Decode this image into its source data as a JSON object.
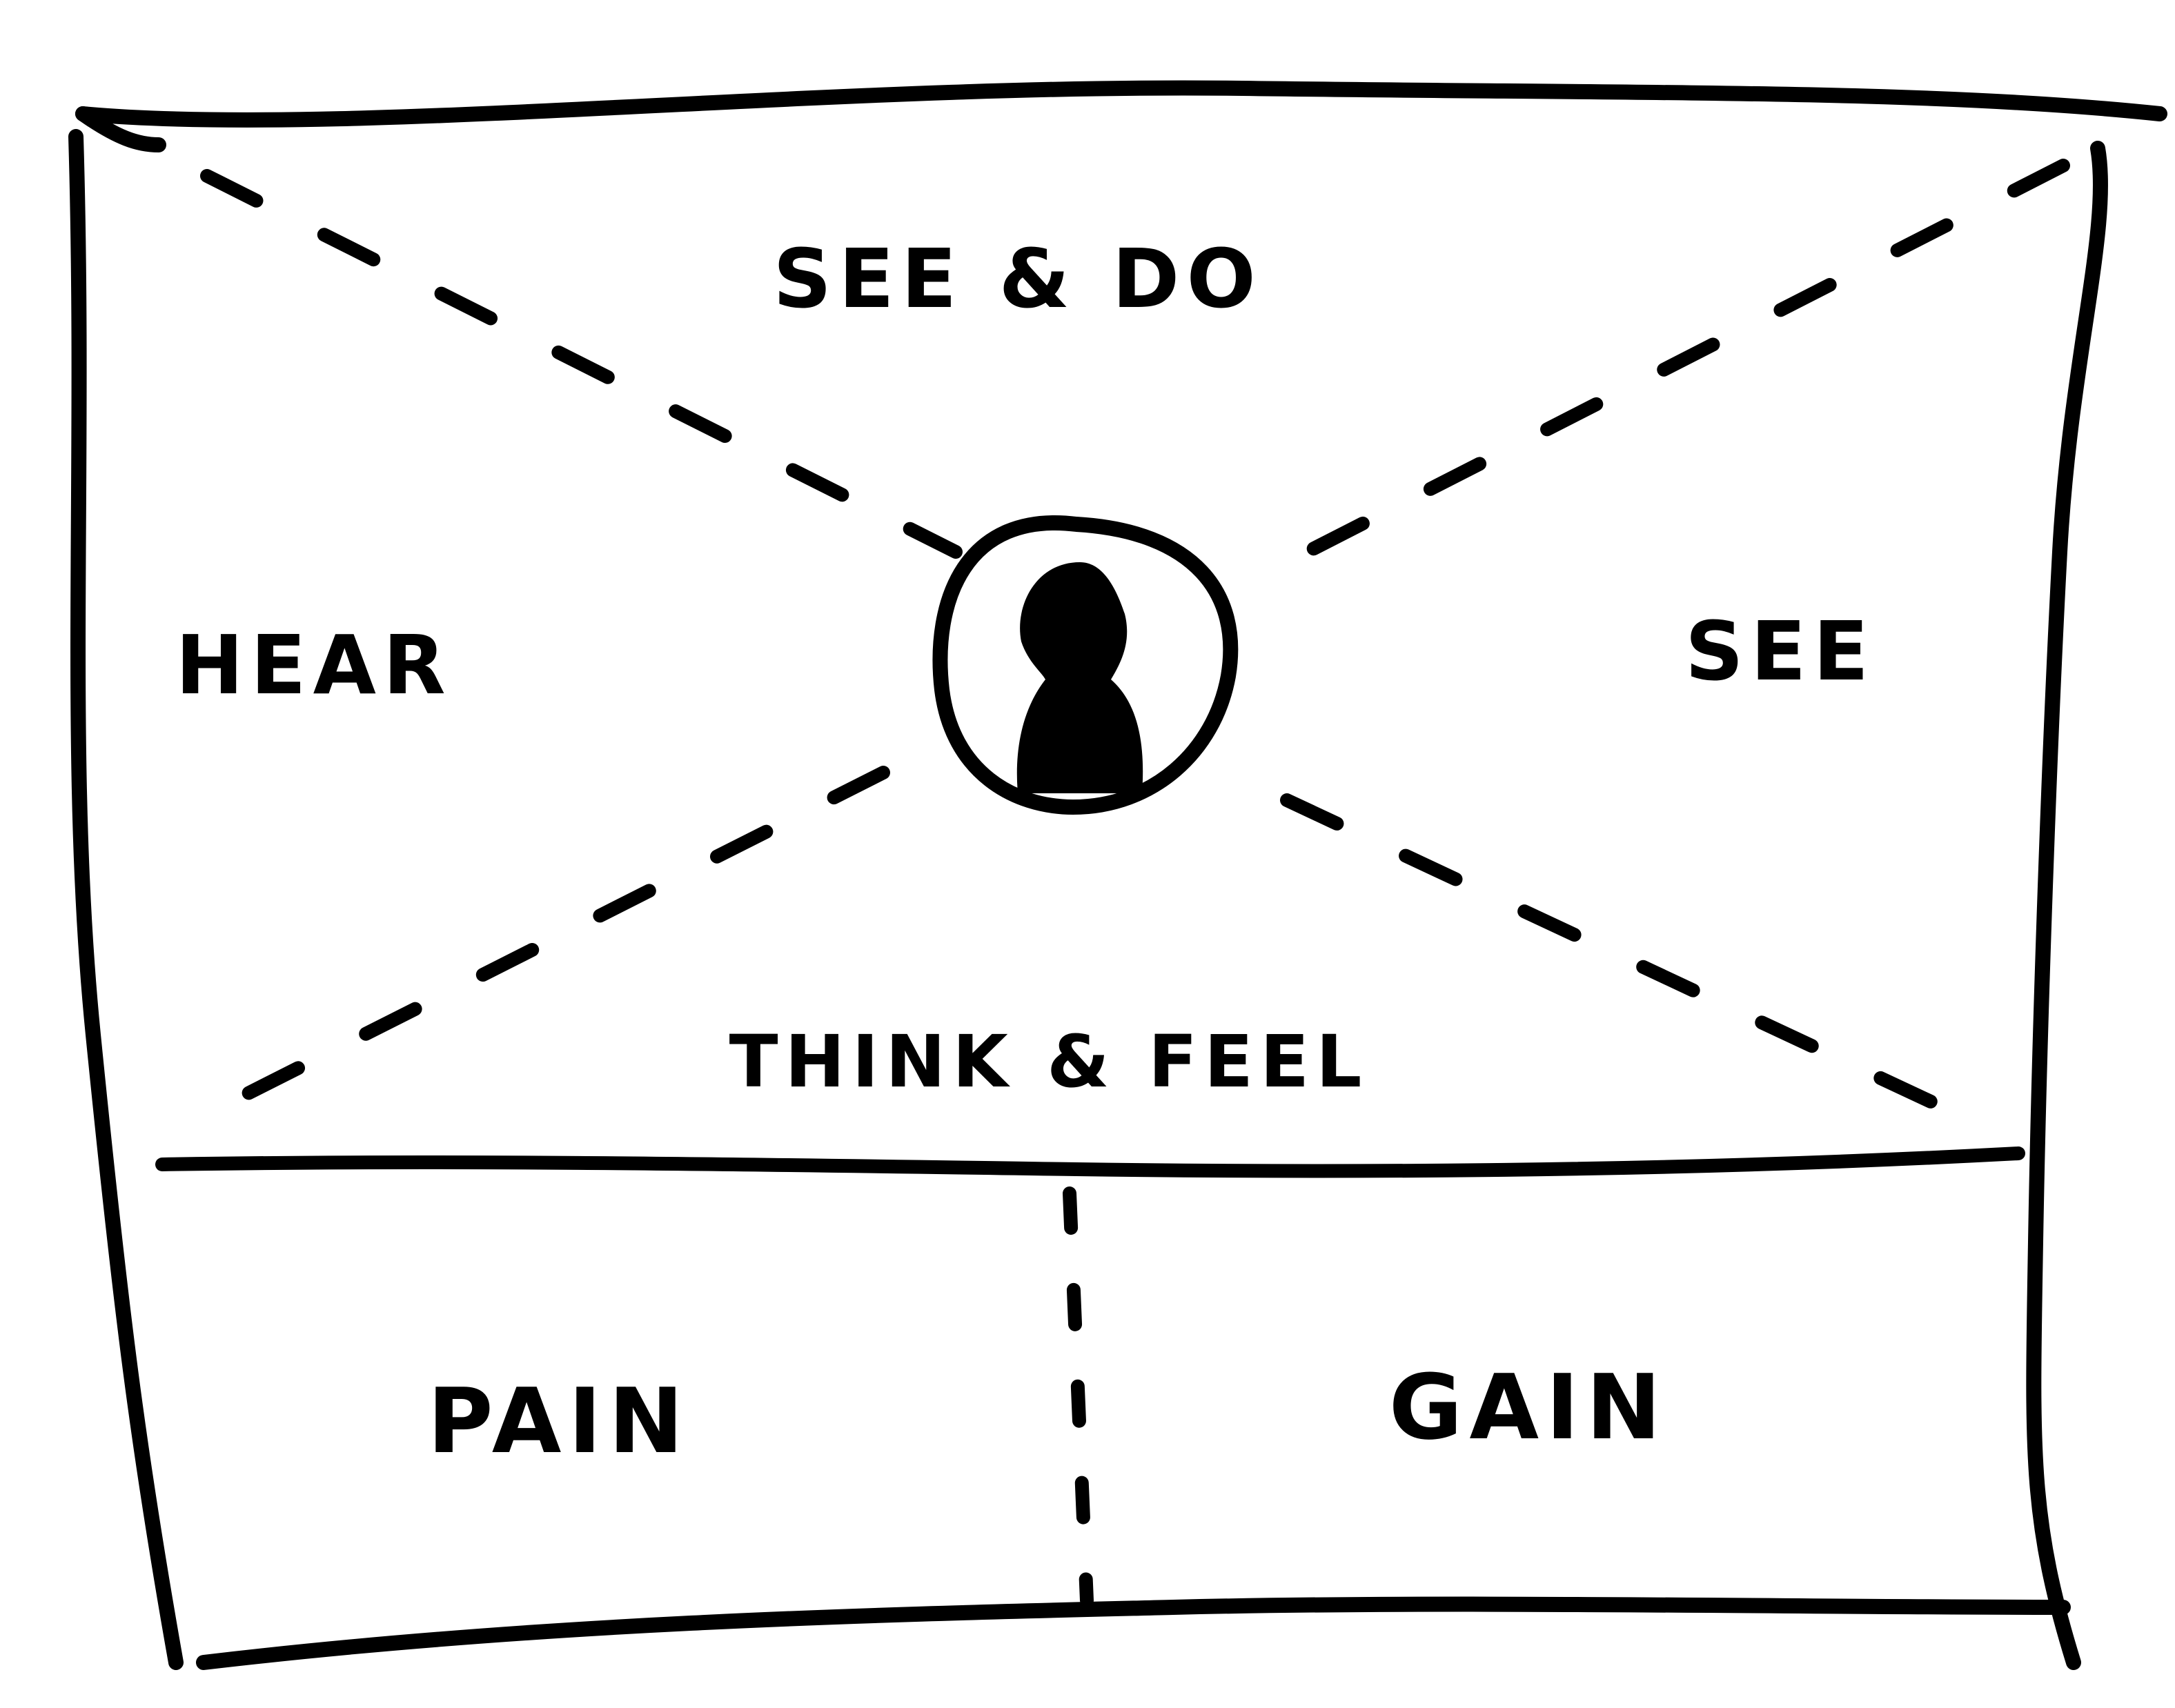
{
  "diagram": {
    "labels": {
      "see_and_do": "SEE & DO",
      "hear": "HEAR",
      "see": "SEE",
      "think_and_feel": "THINK & FEEL",
      "pain": "PAIN",
      "gain": "GAIN"
    },
    "icons": {
      "center": "person-silhouette-icon"
    },
    "colors": {
      "ink": "#000000",
      "paper": "#ffffff"
    }
  }
}
